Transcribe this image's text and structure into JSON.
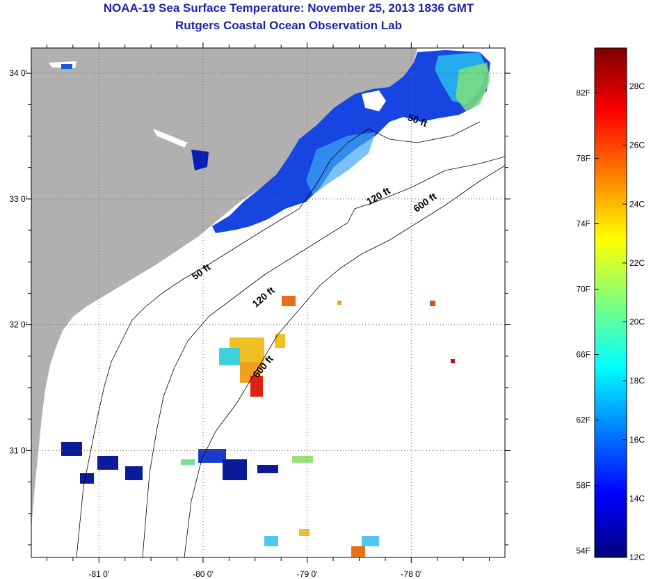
{
  "header": {
    "title": "NOAA-19 Sea Surface Temperature:  November 25, 2013 1836 GMT",
    "subtitle": "Rutgers Coastal Ocean Observation Lab"
  },
  "map": {
    "lon_range": [
      -81.65,
      -77.1
    ],
    "lat_range": [
      30.15,
      34.2
    ],
    "lon_ticks": [
      {
        "value": -81,
        "label": "-81 0'"
      },
      {
        "value": -80,
        "label": "-80 0'"
      },
      {
        "value": -79,
        "label": "-79 0'"
      },
      {
        "value": -78,
        "label": "-78 0'"
      }
    ],
    "lat_ticks": [
      {
        "value": 34,
        "label": "34 0'"
      },
      {
        "value": 33,
        "label": "33 0'"
      },
      {
        "value": 32,
        "label": "32 0'"
      },
      {
        "value": 31,
        "label": "31 0'"
      }
    ],
    "land_color": "#b0b0b0",
    "ocean_color": "#ffffff",
    "grid": "dotted",
    "contour_labels": [
      {
        "depth": "50 ft",
        "text": "50 ft",
        "lon": -77.95,
        "lat": 33.6,
        "rotate": 20
      },
      {
        "depth": "50 ft",
        "text": "50 ft",
        "lon": -80.0,
        "lat": 32.4,
        "rotate": -35
      },
      {
        "depth": "120 ft",
        "text": "120 ft",
        "lon": -78.3,
        "lat": 33.0,
        "rotate": -30
      },
      {
        "depth": "120 ft",
        "text": "120 ft",
        "lon": -79.4,
        "lat": 32.2,
        "rotate": -40
      },
      {
        "depth": "600 ft",
        "text": "600 ft",
        "lon": -77.85,
        "lat": 32.95,
        "rotate": -35
      },
      {
        "depth": "600 ft",
        "text": "600 ft",
        "lon": -79.4,
        "lat": 31.65,
        "rotate": -50
      }
    ]
  },
  "colorbar": {
    "fahrenheit_labels": [
      {
        "value": 82,
        "label": "82F"
      },
      {
        "value": 78,
        "label": "78F"
      },
      {
        "value": 74,
        "label": "74F"
      },
      {
        "value": 70,
        "label": "70F"
      },
      {
        "value": 66,
        "label": "66F"
      },
      {
        "value": 62,
        "label": "62F"
      },
      {
        "value": 58,
        "label": "58F"
      },
      {
        "value": 54,
        "label": "54F"
      }
    ],
    "celsius_labels": [
      {
        "value": 28,
        "label": "28C"
      },
      {
        "value": 26,
        "label": "26C"
      },
      {
        "value": 24,
        "label": "24C"
      },
      {
        "value": 22,
        "label": "22C"
      },
      {
        "value": 20,
        "label": "20C"
      },
      {
        "value": 18,
        "label": "18C"
      },
      {
        "value": 16,
        "label": "16C"
      },
      {
        "value": 14,
        "label": "14C"
      },
      {
        "value": 12,
        "label": "12C"
      }
    ],
    "min_c": 12,
    "max_c": 29.3,
    "colors": [
      "#00007f",
      "#0000ff",
      "#007fff",
      "#00ffff",
      "#7fff7f",
      "#ffff00",
      "#ff7f00",
      "#ff0000",
      "#7f0000"
    ]
  }
}
